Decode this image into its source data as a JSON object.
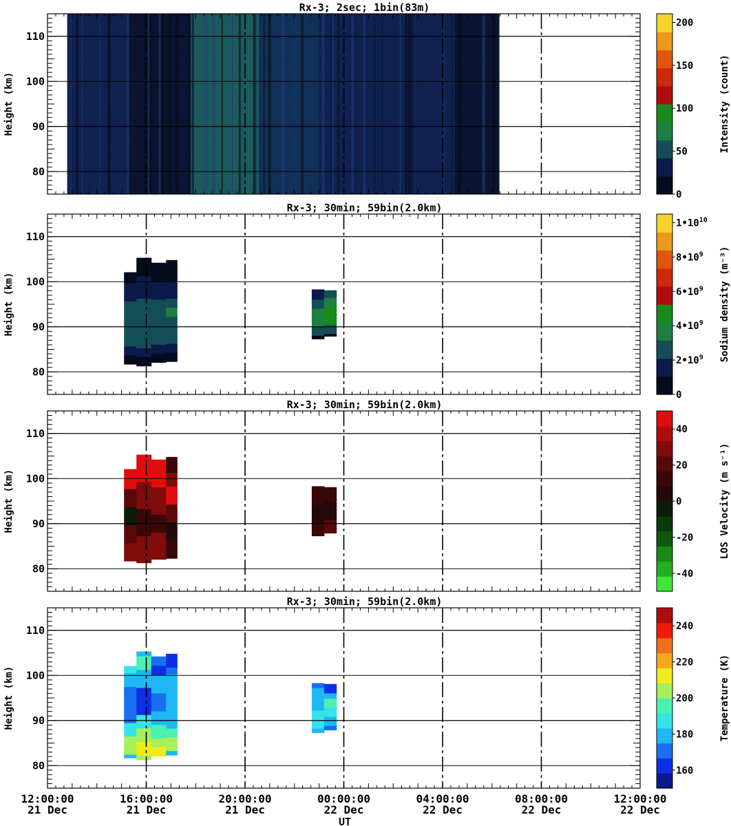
{
  "x_axis": {
    "label": "UT",
    "ticks": [
      {
        "time": "12:00:00",
        "day": "21 Dec",
        "hours": 0
      },
      {
        "time": "16:00:00",
        "day": "21 Dec",
        "hours": 4
      },
      {
        "time": "20:00:00",
        "day": "21 Dec",
        "hours": 8
      },
      {
        "time": "00:00:00",
        "day": "22 Dec",
        "hours": 12
      },
      {
        "time": "04:00:00",
        "day": "22 Dec",
        "hours": 16
      },
      {
        "time": "08:00:00",
        "day": "22 Dec",
        "hours": 20
      },
      {
        "time": "12:00:00",
        "day": "22 Dec",
        "hours": 24
      }
    ]
  },
  "chart_data": [
    {
      "type": "heatmap",
      "title": "Rx-3;  2sec; 1bin(83m)",
      "ylabel": "Height (km)",
      "ylim": [
        75,
        115
      ],
      "yticks": [
        80,
        90,
        100,
        110
      ],
      "xlim_hours": [
        0,
        24
      ],
      "colorbar": {
        "label": "Intensity (count)",
        "range": [
          0,
          210
        ],
        "ticks": [
          {
            "value": 0,
            "text": "0"
          },
          {
            "value": 50,
            "text": "50"
          },
          {
            "value": 100,
            "text": "100"
          },
          {
            "value": 150,
            "text": "150"
          },
          {
            "value": 200,
            "text": "200"
          }
        ],
        "colors": [
          "#050b1c",
          "#0c1a4a",
          "#134e58",
          "#1d8040",
          "#178a1a",
          "#b00c0c",
          "#cc2a0a",
          "#e0560a",
          "#e89a18",
          "#f6d22a"
        ]
      },
      "data_extent_hours": [
        0.8,
        18.3
      ],
      "intensity_profile": [
        {
          "from": 0.8,
          "to": 3.2,
          "level": "low"
        },
        {
          "from": 3.2,
          "to": 5.8,
          "level": "very low"
        },
        {
          "from": 5.8,
          "to": 8.6,
          "level": "medium"
        },
        {
          "from": 8.6,
          "to": 11.0,
          "level": "low-medium"
        },
        {
          "from": 11.0,
          "to": 16.5,
          "level": "low"
        },
        {
          "from": 16.5,
          "to": 18.3,
          "level": "very low"
        }
      ]
    },
    {
      "type": "heatmap",
      "title": "Rx-3; 30min; 59bin(2.0km)",
      "ylabel": "Height (km)",
      "ylim": [
        75,
        115
      ],
      "yticks": [
        80,
        90,
        100,
        110
      ],
      "xlim_hours": [
        0,
        24
      ],
      "colorbar": {
        "label": "Sodium density (m⁻³)",
        "range": [
          0,
          10500000000.0
        ],
        "ticks": [
          {
            "value": 0,
            "text": "0",
            "sup": ""
          },
          {
            "value": 2000000000.0,
            "text": "2•10",
            "sup": "9"
          },
          {
            "value": 4000000000.0,
            "text": "4•10",
            "sup": "9"
          },
          {
            "value": 6000000000.0,
            "text": "6•10",
            "sup": "9"
          },
          {
            "value": 8000000000.0,
            "text": "8•10",
            "sup": "9"
          },
          {
            "value": 10000000000.0,
            "text": "1•10",
            "sup": "10"
          }
        ],
        "colors": [
          "#050b1c",
          "#0c1a4a",
          "#134e58",
          "#1d8040",
          "#178a1a",
          "#b00c0c",
          "#cc2a0a",
          "#e0560a",
          "#e89a18",
          "#f6d22a"
        ]
      },
      "columns": [
        {
          "x0": 3.1,
          "x1": 3.6,
          "segments": [
            [
              81.7,
              83.7,
              0
            ],
            [
              83.7,
              85.7,
              1
            ],
            [
              85.7,
              95.7,
              2
            ],
            [
              95.7,
              99.7,
              1
            ],
            [
              99.7,
              102.1,
              0
            ]
          ]
        },
        {
          "x0": 3.6,
          "x1": 4.2,
          "segments": [
            [
              81.3,
              83.3,
              0
            ],
            [
              83.3,
              85.3,
              1
            ],
            [
              85.3,
              96.3,
              2
            ],
            [
              96.3,
              101.3,
              1
            ],
            [
              101.3,
              105.3,
              0
            ]
          ]
        },
        {
          "x0": 4.2,
          "x1": 4.8,
          "segments": [
            [
              82.1,
              84.1,
              0
            ],
            [
              84.1,
              86.1,
              1
            ],
            [
              86.1,
              96.1,
              2
            ],
            [
              96.1,
              100.1,
              1
            ],
            [
              100.1,
              104.2,
              0
            ]
          ]
        },
        {
          "x0": 4.8,
          "x1": 5.25,
          "segments": [
            [
              82.3,
              84.3,
              0
            ],
            [
              84.3,
              86.3,
              1
            ],
            [
              86.3,
              92.3,
              2
            ],
            [
              92.3,
              94.3,
              3
            ],
            [
              94.3,
              96.3,
              2
            ],
            [
              96.3,
              100.3,
              1
            ],
            [
              100.3,
              104.8,
              0
            ]
          ]
        },
        {
          "x0": 10.7,
          "x1": 11.2,
          "segments": [
            [
              87.3,
              88.1,
              0
            ],
            [
              88.1,
              90.1,
              2
            ],
            [
              90.1,
              94.1,
              3
            ],
            [
              94.1,
              96.1,
              2
            ],
            [
              96.1,
              98.3,
              1
            ]
          ]
        },
        {
          "x0": 11.2,
          "x1": 11.7,
          "segments": [
            [
              87.9,
              88.5,
              0
            ],
            [
              88.5,
              90.5,
              2
            ],
            [
              90.5,
              94.5,
              4
            ],
            [
              94.5,
              96.5,
              3
            ],
            [
              96.5,
              98.1,
              2
            ]
          ]
        }
      ]
    },
    {
      "type": "heatmap",
      "title": "Rx-3; 30min; 59bin(2.0km)",
      "ylabel": "Height (km)",
      "ylim": [
        75,
        115
      ],
      "yticks": [
        80,
        90,
        100,
        110
      ],
      "xlim_hours": [
        0,
        24
      ],
      "colorbar": {
        "label": "LOS Velocity (m s⁻¹)",
        "range": [
          -50,
          50
        ],
        "ticks": [
          {
            "value": -40,
            "text": "-40"
          },
          {
            "value": -20,
            "text": "-20"
          },
          {
            "value": 0,
            "text": "0"
          },
          {
            "value": 20,
            "text": "20"
          },
          {
            "value": 40,
            "text": "40"
          }
        ],
        "colors": [
          "#3ee63a",
          "#25b01f",
          "#1a8a15",
          "#0e5a0c",
          "#0a3a0a",
          "#0c1a0c",
          "#220a0a",
          "#3a0808",
          "#5a0808",
          "#800c0c",
          "#b00c0c",
          "#e00c0c"
        ]
      },
      "columns": [
        {
          "x0": 3.1,
          "x1": 3.6,
          "segments": [
            [
              81.7,
              85.7,
              9
            ],
            [
              85.7,
              89.7,
              8
            ],
            [
              89.7,
              93.7,
              5
            ],
            [
              93.7,
              97.7,
              8
            ],
            [
              97.7,
              102.1,
              11
            ]
          ]
        },
        {
          "x0": 3.6,
          "x1": 4.2,
          "segments": [
            [
              81.3,
              87.3,
              9
            ],
            [
              87.3,
              93.3,
              7
            ],
            [
              93.3,
              99.3,
              9
            ],
            [
              99.3,
              105.3,
              11
            ]
          ]
        },
        {
          "x0": 4.2,
          "x1": 4.8,
          "segments": [
            [
              82.1,
              88.1,
              9
            ],
            [
              88.1,
              92.1,
              7
            ],
            [
              92.1,
              98.1,
              9
            ],
            [
              98.1,
              104.2,
              11
            ]
          ]
        },
        {
          "x0": 4.8,
          "x1": 5.25,
          "segments": [
            [
              82.3,
              86.3,
              7
            ],
            [
              86.3,
              90.3,
              6
            ],
            [
              90.3,
              94.3,
              8
            ],
            [
              94.3,
              98.3,
              11
            ],
            [
              98.3,
              101.3,
              9
            ],
            [
              101.3,
              104.8,
              7
            ]
          ]
        },
        {
          "x0": 10.7,
          "x1": 11.2,
          "segments": [
            [
              87.3,
              90.3,
              7
            ],
            [
              90.3,
              94.3,
              6
            ],
            [
              94.3,
              98.3,
              7
            ]
          ]
        },
        {
          "x0": 11.2,
          "x1": 11.7,
          "segments": [
            [
              87.9,
              90.9,
              8
            ],
            [
              90.9,
              94.9,
              6
            ],
            [
              94.9,
              98.1,
              7
            ]
          ]
        }
      ]
    },
    {
      "type": "heatmap",
      "title": "Rx-3; 30min; 59bin(2.0km)",
      "ylabel": "Height (km)",
      "ylim": [
        75,
        115
      ],
      "yticks": [
        80,
        90,
        100,
        110
      ],
      "xlim_hours": [
        0,
        24
      ],
      "colorbar": {
        "label": "Temperature (K)",
        "range": [
          150,
          250
        ],
        "ticks": [
          {
            "value": 160,
            "text": "160"
          },
          {
            "value": 180,
            "text": "180"
          },
          {
            "value": 200,
            "text": "200"
          },
          {
            "value": 220,
            "text": "220"
          },
          {
            "value": 240,
            "text": "240"
          }
        ],
        "colors": [
          "#0a1a8c",
          "#0c2fe6",
          "#1a6ef0",
          "#20b8f4",
          "#36e4e8",
          "#4cf0b0",
          "#a6f05a",
          "#f0ec1c",
          "#f6a81a",
          "#f0701a",
          "#f01a0c",
          "#b00c0c"
        ]
      },
      "columns": [
        {
          "x0": 3.1,
          "x1": 3.6,
          "segments": [
            [
              81.7,
              82.5,
              3
            ],
            [
              82.5,
              84.5,
              6
            ],
            [
              84.5,
              86.5,
              6
            ],
            [
              86.5,
              89.5,
              4
            ],
            [
              89.5,
              97.5,
              2
            ],
            [
              97.5,
              100.5,
              3
            ],
            [
              100.5,
              102.1,
              4
            ]
          ]
        },
        {
          "x0": 3.6,
          "x1": 4.2,
          "segments": [
            [
              81.3,
              82.3,
              6
            ],
            [
              82.3,
              85.3,
              7
            ],
            [
              85.3,
              88.3,
              6
            ],
            [
              88.3,
              91.3,
              4
            ],
            [
              91.3,
              97.3,
              1
            ],
            [
              97.3,
              101.3,
              3
            ],
            [
              101.3,
              104.3,
              5
            ],
            [
              104.3,
              105.3,
              3
            ]
          ]
        },
        {
          "x0": 4.2,
          "x1": 4.8,
          "segments": [
            [
              82.1,
              84.1,
              7
            ],
            [
              84.1,
              86.1,
              6
            ],
            [
              86.1,
              89.1,
              5
            ],
            [
              89.1,
              92.1,
              3
            ],
            [
              92.1,
              96.1,
              2
            ],
            [
              96.1,
              100.1,
              3
            ],
            [
              100.1,
              102.2,
              1
            ],
            [
              102.2,
              104.2,
              2
            ]
          ]
        },
        {
          "x0": 4.8,
          "x1": 5.25,
          "segments": [
            [
              82.3,
              83.3,
              3
            ],
            [
              83.3,
              86.3,
              6
            ],
            [
              86.3,
              88.3,
              5
            ],
            [
              88.3,
              96.3,
              3
            ],
            [
              96.3,
              100.3,
              3
            ],
            [
              100.3,
              101.8,
              2
            ],
            [
              101.8,
              104.8,
              1
            ]
          ]
        },
        {
          "x0": 10.7,
          "x1": 11.2,
          "segments": [
            [
              87.3,
              88.3,
              3
            ],
            [
              88.3,
              92.3,
              4
            ],
            [
              92.3,
              94.3,
              3
            ],
            [
              94.3,
              97.3,
              3
            ],
            [
              97.3,
              98.3,
              2
            ]
          ]
        },
        {
          "x0": 11.2,
          "x1": 11.7,
          "segments": [
            [
              87.9,
              88.9,
              2
            ],
            [
              88.9,
              90.9,
              3
            ],
            [
              90.9,
              92.9,
              4
            ],
            [
              92.9,
              94.9,
              5
            ],
            [
              94.9,
              96.1,
              3
            ],
            [
              96.1,
              98.1,
              1
            ]
          ]
        }
      ]
    }
  ]
}
